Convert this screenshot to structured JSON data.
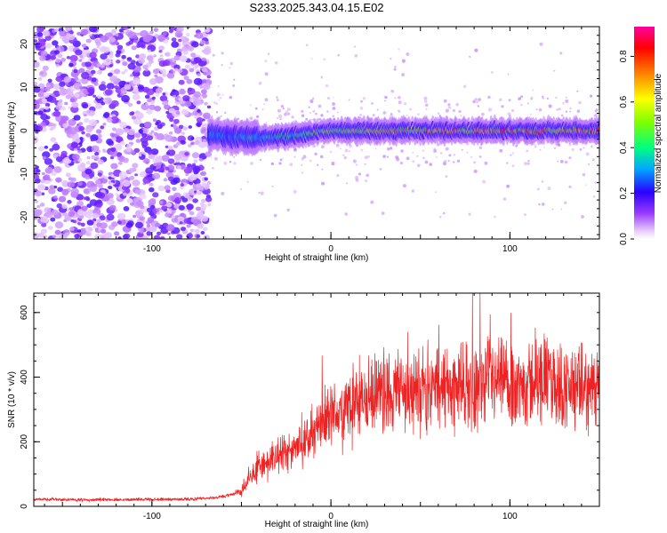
{
  "chart_data": [
    {
      "type": "heatmap",
      "title": "S233.2025.343.04.15.E02",
      "xlabel": "Height of straight line (km)",
      "ylabel": "Frequency (Hz)",
      "xlim": [
        -166,
        150
      ],
      "ylim": [
        -25,
        24
      ],
      "xticks": [
        -100,
        0,
        100
      ],
      "yticks": [
        -20,
        -10,
        0,
        10,
        20
      ],
      "colorbar": {
        "label": "Normalized spectral amplitude",
        "range": [
          0,
          0.93
        ],
        "ticks": [
          0.0,
          0.2,
          0.4,
          0.6,
          0.8
        ]
      },
      "noise_region_x": [
        -166,
        -68
      ],
      "signal_onset_x": -68,
      "signal_band_hz": [
        -2,
        2
      ],
      "description_points": [
        {
          "x": -68,
          "freq": -1.0,
          "amp": 0.35
        },
        {
          "x": -50,
          "freq": -1.5,
          "amp": 0.4
        },
        {
          "x": -30,
          "freq": -1.5,
          "amp": 0.45
        },
        {
          "x": -10,
          "freq": -0.5,
          "amp": 0.55
        },
        {
          "x": 0,
          "freq": 0.0,
          "amp": 0.7
        },
        {
          "x": 50,
          "freq": 0.0,
          "amp": 0.8
        },
        {
          "x": 100,
          "freq": 0.0,
          "amp": 0.85
        },
        {
          "x": 150,
          "freq": 0.0,
          "amp": 0.85
        }
      ]
    },
    {
      "type": "line",
      "title": "",
      "xlabel": "Height of straight line (km)",
      "ylabel": "SNR (10 * v/v)",
      "xlim": [
        -166,
        150
      ],
      "ylim": [
        0,
        660
      ],
      "xticks": [
        -100,
        0,
        100
      ],
      "yticks": [
        0,
        200,
        400,
        600
      ],
      "series": [
        {
          "name": "SNR",
          "color": "#ee2222",
          "x": [
            -166,
            -140,
            -120,
            -100,
            -80,
            -70,
            -60,
            -50,
            -45,
            -40,
            -35,
            -30,
            -25,
            -20,
            -15,
            -10,
            -5,
            0,
            10,
            20,
            30,
            40,
            50,
            60,
            70,
            80,
            90,
            100,
            110,
            120,
            130,
            140,
            150
          ],
          "y": [
            22,
            20,
            21,
            22,
            22,
            24,
            30,
            45,
            90,
            130,
            140,
            150,
            170,
            180,
            200,
            230,
            260,
            280,
            310,
            330,
            350,
            360,
            360,
            370,
            370,
            370,
            380,
            370,
            380,
            390,
            370,
            360,
            360
          ]
        }
      ]
    }
  ]
}
